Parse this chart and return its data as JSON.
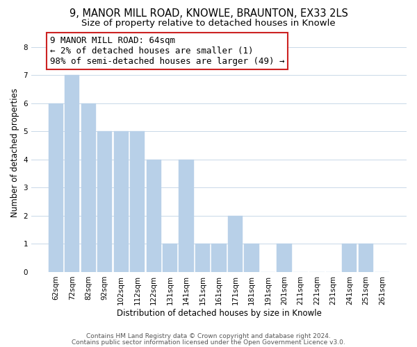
{
  "title": "9, MANOR MILL ROAD, KNOWLE, BRAUNTON, EX33 2LS",
  "subtitle": "Size of property relative to detached houses in Knowle",
  "xlabel": "Distribution of detached houses by size in Knowle",
  "ylabel": "Number of detached properties",
  "bar_labels": [
    "62sqm",
    "72sqm",
    "82sqm",
    "92sqm",
    "102sqm",
    "112sqm",
    "122sqm",
    "131sqm",
    "141sqm",
    "151sqm",
    "161sqm",
    "171sqm",
    "181sqm",
    "191sqm",
    "201sqm",
    "211sqm",
    "221sqm",
    "231sqm",
    "241sqm",
    "251sqm",
    "261sqm"
  ],
  "bar_values": [
    6,
    7,
    6,
    5,
    5,
    5,
    4,
    1,
    4,
    1,
    1,
    2,
    1,
    0,
    1,
    0,
    0,
    0,
    1,
    1,
    0
  ],
  "bar_color": "#b8d0e8",
  "annotation_line1": "9 MANOR MILL ROAD: 64sqm",
  "annotation_line2": "← 2% of detached houses are smaller (1)",
  "annotation_line3": "98% of semi-detached houses are larger (49) →",
  "annotation_box_color": "#ffffff",
  "annotation_box_edge_color": "#cc2222",
  "ylim": [
    0,
    8.5
  ],
  "yticks": [
    0,
    1,
    2,
    3,
    4,
    5,
    6,
    7,
    8
  ],
  "footer_line1": "Contains HM Land Registry data © Crown copyright and database right 2024.",
  "footer_line2": "Contains public sector information licensed under the Open Government Licence v3.0.",
  "background_color": "#ffffff",
  "grid_color": "#c8d8e8",
  "title_fontsize": 10.5,
  "subtitle_fontsize": 9.5,
  "axis_label_fontsize": 8.5,
  "tick_fontsize": 7.5,
  "annotation_fontsize": 9,
  "footer_fontsize": 6.5
}
